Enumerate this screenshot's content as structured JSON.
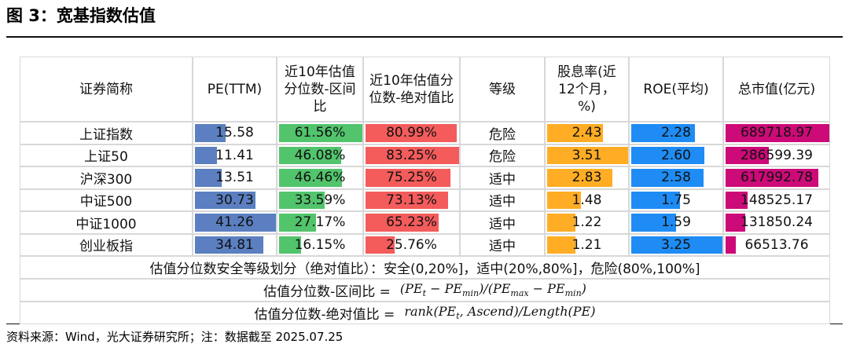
{
  "header": {
    "title": "图 3：宽基指数估值"
  },
  "table": {
    "columns": [
      "证券简称",
      "PE(TTM)",
      "近10年估值分位数-区间比",
      "近10年估值分位数-绝对值比",
      "等级",
      "股息率(近12个月，%)",
      "ROE(平均)",
      "总市值(亿元)"
    ],
    "bar_colors": [
      null,
      "#5b7fc0",
      "#52c46c",
      "#f45b5b",
      null,
      "#ffad24",
      "#1e8cf4",
      "#cc0a78"
    ],
    "rows": [
      [
        "上证指数",
        "15.58",
        "61.56%",
        "80.99%",
        "危险",
        "2.43",
        "2.28",
        "689718.97"
      ],
      [
        "上证50",
        "11.41",
        "46.08%",
        "83.25%",
        "危险",
        "3.51",
        "2.60",
        "286599.39"
      ],
      [
        "沪深300",
        "13.51",
        "46.46%",
        "75.25%",
        "适中",
        "2.83",
        "2.58",
        "617992.78"
      ],
      [
        "中证500",
        "30.73",
        "33.59%",
        "73.13%",
        "适中",
        "1.48",
        "1.75",
        "148525.17"
      ],
      [
        "中证1000",
        "41.26",
        "27.17%",
        "65.23%",
        "适中",
        "1.22",
        "1.59",
        "131850.24"
      ],
      [
        "创业板指",
        "34.81",
        "16.15%",
        "25.76%",
        "适中",
        "1.21",
        "3.25",
        "66513.76"
      ]
    ]
  },
  "notes": {
    "safety": "估值分位数安全等级划分（绝对值比）：安全(0,20%]，适中(20%,80%]，危险(80%,100%]",
    "formulas": [
      {
        "label": "估值分位数-区间比 =",
        "formula": "(PE_t − PE_min)/(PE_max − PE_min)"
      },
      {
        "label": "估值分位数-绝对值比 =",
        "formula": "rank(PE_t, Ascend)/Length(PE)"
      }
    ]
  },
  "footer": {
    "source": "资料来源：Wind，光大证券研究所；注：数据截至 2025.07.25"
  }
}
